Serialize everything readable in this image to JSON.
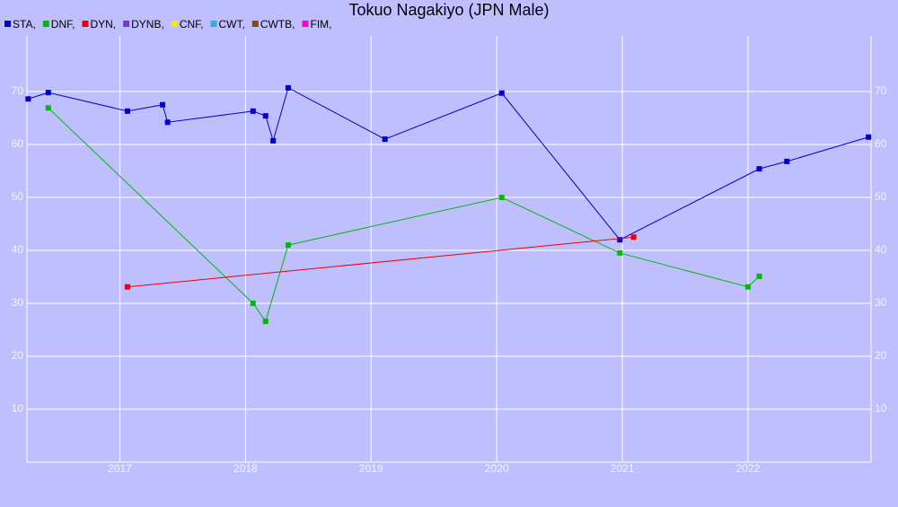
{
  "chart_data": {
    "type": "line",
    "title": "Tokuo Nagakiyo (JPN Male)",
    "xlim": [
      2016.26,
      2022.98
    ],
    "xticks": [
      2017,
      2018,
      2019,
      2020,
      2021,
      2022
    ],
    "ylim": [
      0,
      80
    ],
    "yticks": [
      10,
      20,
      30,
      40,
      50,
      60,
      70
    ],
    "grid": true,
    "series": [
      {
        "name": "STA,",
        "color": "#0000cc",
        "x": [
          2016.27,
          2016.43,
          2017.06,
          2017.34,
          2017.38,
          2018.06,
          2018.16,
          2018.22,
          2018.34,
          2019.11,
          2020.04,
          2020.98,
          2022.09,
          2022.31,
          2022.96
        ],
        "values": [
          68.6,
          69.8,
          66.3,
          67.5,
          64.2,
          66.3,
          65.4,
          60.7,
          70.7,
          61.0,
          69.7,
          42.0,
          55.4,
          56.8,
          61.4
        ]
      },
      {
        "name": "DNF,",
        "color": "#00bb00",
        "x": [
          2016.43,
          2018.06,
          2018.16,
          2018.34,
          2020.04,
          2020.98,
          2022.0,
          2022.09
        ],
        "values": [
          66.9,
          30.0,
          26.6,
          41.0,
          50.0,
          39.5,
          33.1,
          35.1
        ]
      },
      {
        "name": "DYN,",
        "color": "#ee0000",
        "x": [
          2017.06,
          2021.09
        ],
        "values": [
          33.1,
          42.5
        ]
      },
      {
        "name": "DYNB,",
        "color": "#7733dd",
        "x": [],
        "values": []
      },
      {
        "name": "CNF,",
        "color": "#eeee00",
        "x": [],
        "values": []
      },
      {
        "name": "CWT,",
        "color": "#33aadd",
        "x": [],
        "values": []
      },
      {
        "name": "CWTB,",
        "color": "#994400",
        "x": [],
        "values": []
      },
      {
        "name": "FIM,",
        "color": "#ff00cc",
        "x": [],
        "values": []
      }
    ]
  }
}
